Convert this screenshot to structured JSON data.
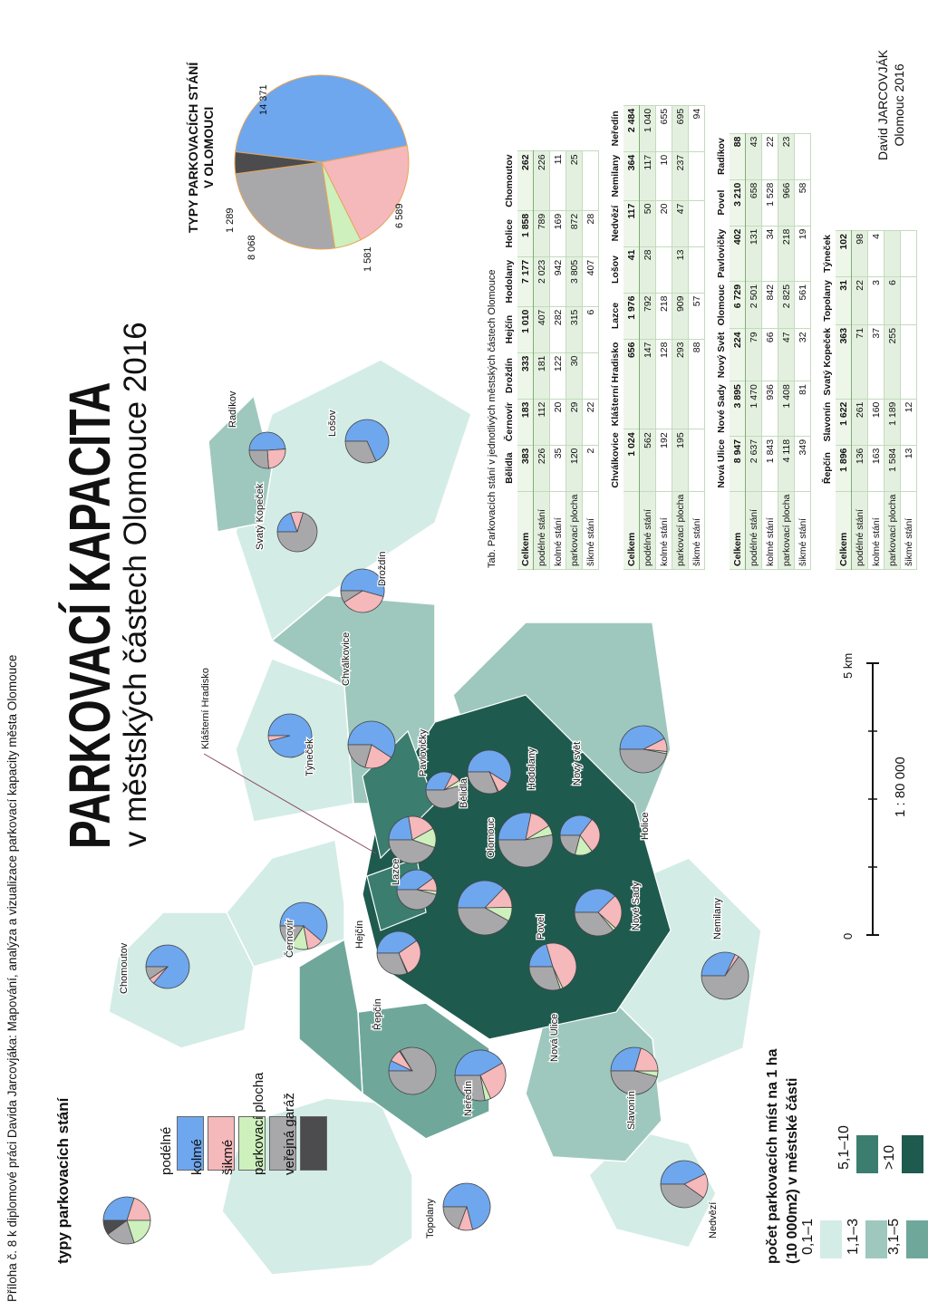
{
  "caption": "Příloha č. 8 k diplomové práci Davida Jarcovjáka: Mapování, analýza a vizualizace parkovací kapacity města Olomouce",
  "title": "PARKOVACÍ KAPACITA",
  "subtitle": "v městských částech Olomouce 2016",
  "author": {
    "name": "David JARCOVJÁK",
    "place_year": "Olomouc 2016"
  },
  "colors": {
    "podelne": "#6ea7ee",
    "kolme": "#f5b8bb",
    "sikme": "#cdf0bd",
    "parkovaci_plocha": "#a8a8aa",
    "verejna_garaz": "#4c4c4f",
    "density": [
      "#d4ece6",
      "#9ec8bd",
      "#6fa89b",
      "#3b7d6e",
      "#1f5a4f"
    ]
  },
  "legend_types": {
    "title": "typy parkovacích stání",
    "items": [
      {
        "label": "podélné",
        "color": "#6ea7ee"
      },
      {
        "label": "kolmé",
        "color": "#f5b8bb"
      },
      {
        "label": "šikmé",
        "color": "#cdf0bd"
      },
      {
        "label": "parkovací plocha",
        "color": "#a8a8aa"
      },
      {
        "label": "veřejná garáž",
        "color": "#4c4c4f"
      }
    ]
  },
  "legend_density": {
    "title_line1": "počet parkovacích míst na 1 ha",
    "title_line2": "(10 000m2) v městské části",
    "classes": [
      "0,1–1",
      "1,1–3",
      "3,1–5",
      "5,1–10",
      ">10"
    ]
  },
  "scale": {
    "ticks": [
      "0",
      "5 km"
    ],
    "text": "1 : 80 000"
  },
  "map_labels": {
    "Chomoutov": "Chomoutov",
    "Topolany": "Topolany",
    "Neredin": "Neředín",
    "Repcin": "Řepčín",
    "Hejcin": "Hejčín",
    "Cernovir": "Černovír",
    "Lazce": "Lazce",
    "KlHradisko": "Klášterní Hradisko",
    "Tynecek": "Týneček",
    "Chvalkovice": "Chválkovice",
    "Pavlovicky": "Pavlovičky",
    "Belidla": "Bělidla",
    "Olomouc": "Olomouc",
    "Hodolany": "Hodolany",
    "NovySvet": "Nový svět",
    "Holice": "Holice",
    "NoveSady": "Nové Sady",
    "Povel": "Povel",
    "NovaUlice": "Nová Ulice",
    "Slavonin": "Slavonín",
    "Nemilany": "Nemilany",
    "Nedvezi": "Nedvězí",
    "SvKopecek": "Svatý Kopeček",
    "Radikov": "Radíkov",
    "Losov": "Lošov",
    "Drozdin": "Droždín"
  },
  "table": {
    "caption": "Tab. Parkovacích stání v jednotlivých městských částech Olomouce",
    "row_labels": [
      "Celkem",
      "podélné stání",
      "kolmé stání",
      "parkovací plocha",
      "šikmé stání"
    ],
    "blocks": [
      {
        "headers": [
          "Bělidla",
          "Černovír",
          "Droždín",
          "Hejčín",
          "Hodolany",
          "Holice",
          "Chomoutov"
        ],
        "rows": [
          [
            "383",
            "183",
            "333",
            "1 010",
            "7 177",
            "1 858",
            "262"
          ],
          [
            "226",
            "112",
            "181",
            "407",
            "2 023",
            "789",
            "226"
          ],
          [
            "35",
            "20",
            "122",
            "282",
            "942",
            "169",
            "11"
          ],
          [
            "120",
            "29",
            "30",
            "315",
            "3 805",
            "872",
            "25"
          ],
          [
            "2",
            "22",
            "",
            "6",
            "407",
            "28",
            ""
          ]
        ]
      },
      {
        "headers": [
          "Chválkovice",
          "Klášterní Hradisko",
          "Lazce",
          "Lošov",
          "Nedvězí",
          "Nemilany",
          "Neředín"
        ],
        "rows": [
          [
            "1 024",
            "656",
            "1 976",
            "41",
            "117",
            "364",
            "2 484"
          ],
          [
            "562",
            "147",
            "792",
            "28",
            "50",
            "117",
            "1 040"
          ],
          [
            "192",
            "128",
            "218",
            "",
            "20",
            "10",
            "655"
          ],
          [
            "195",
            "293",
            "909",
            "13",
            "47",
            "237",
            "695"
          ],
          [
            "",
            "88",
            "57",
            "",
            "",
            "",
            "94"
          ]
        ]
      },
      {
        "headers": [
          "Nová Ulice",
          "Nové Sady",
          "Nový Svět",
          "Olomouc",
          "Pavlovičky",
          "Povel",
          "Radíkov"
        ],
        "rows": [
          [
            "8 947",
            "3 895",
            "224",
            "6 729",
            "402",
            "3 210",
            "88"
          ],
          [
            "2 637",
            "1 470",
            "79",
            "2 501",
            "131",
            "658",
            "43"
          ],
          [
            "1 843",
            "936",
            "66",
            "842",
            "34",
            "1 528",
            "22"
          ],
          [
            "4 118",
            "1 408",
            "47",
            "2 825",
            "218",
            "966",
            "23"
          ],
          [
            "349",
            "81",
            "32",
            "561",
            "19",
            "58",
            ""
          ]
        ]
      },
      {
        "headers": [
          "Řepčín",
          "Slavonín",
          "Svatý Kopeček",
          "Topolany",
          "Týneček"
        ],
        "rows": [
          [
            "1 896",
            "1 622",
            "363",
            "31",
            "102"
          ],
          [
            "136",
            "261",
            "71",
            "22",
            "98"
          ],
          [
            "163",
            "160",
            "37",
            "3",
            "4"
          ],
          [
            "1 584",
            "1 189",
            "255",
            "6",
            ""
          ],
          [
            "13",
            "12",
            "",
            "",
            ""
          ]
        ]
      }
    ]
  },
  "chart_data": {
    "type": "pie",
    "title": "TYPY PARKOVACÍCH STÁNÍ V OLOMOUCI",
    "categories": [
      "podélné",
      "kolmé",
      "šikmé",
      "parkovací plocha",
      "veřejná garáž"
    ],
    "values": [
      14371,
      6589,
      1581,
      8068,
      1289
    ],
    "value_labels": [
      "14 371",
      "6 589",
      "1 581",
      "8 068",
      "1 289"
    ]
  }
}
